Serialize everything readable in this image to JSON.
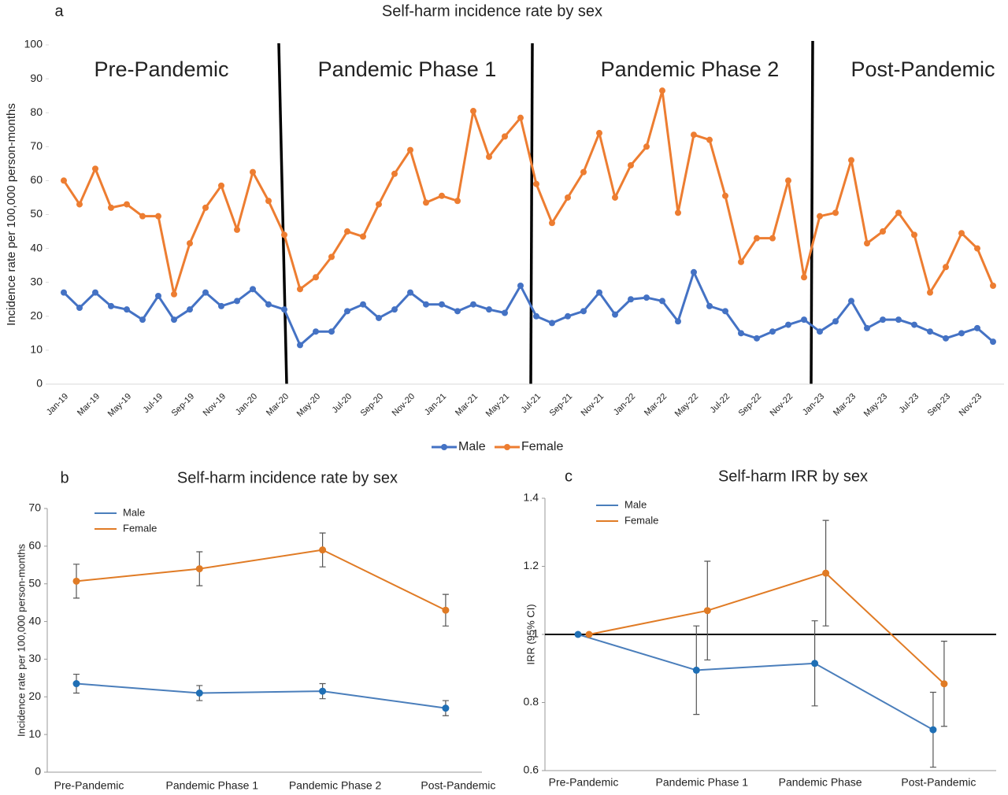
{
  "chart_data": [
    {
      "type": "line",
      "panel_label": "a",
      "title": "Self-harm incidence rate by sex",
      "y_label": "Incidence rate per 100,000 person-months",
      "annotations": [
        "Pre-Pandemic",
        "Pandemic Phase 1",
        "Pandemic Phase 2",
        "Post-Pandemic"
      ],
      "categories": [
        "Jan-19",
        null,
        "Mar-19",
        null,
        "May-19",
        null,
        "Jul-19",
        null,
        "Sep-19",
        null,
        "Nov-19",
        null,
        "Jan-20",
        null,
        "Mar-20",
        null,
        "May-20",
        null,
        "Jul-20",
        null,
        "Sep-20",
        null,
        "Nov-20",
        null,
        "Jan-21",
        null,
        "Mar-21",
        null,
        "May-21",
        null,
        "Jul-21",
        null,
        "Sep-21",
        null,
        "Nov-21",
        null,
        "Jan-22",
        null,
        "Mar-22",
        null,
        "May-22",
        null,
        "Jul-22",
        null,
        "Sep-22",
        null,
        "Nov-22",
        null,
        "Jan-23",
        null,
        "Mar-23",
        null,
        "May-23",
        null,
        "Jul-23",
        null,
        "Sep-23",
        null,
        "Nov-23",
        null
      ],
      "series": [
        {
          "name": "Male",
          "color": "#4472c4",
          "values": [
            27,
            22.5,
            27,
            23,
            22,
            19,
            26,
            19,
            22,
            27,
            23,
            24.5,
            28,
            23.5,
            22,
            11.5,
            15.5,
            15.5,
            21.5,
            23.5,
            19.5,
            22,
            27,
            23.5,
            23.5,
            21.5,
            23.5,
            22,
            21,
            29,
            20,
            18,
            20,
            21.5,
            27,
            20.5,
            25,
            25.5,
            24.5,
            18.5,
            33,
            23,
            21.5,
            15,
            13.5,
            15.5,
            17.5,
            19,
            15.5,
            18.5,
            24.5,
            16.5,
            19,
            19,
            17.5,
            15.5,
            13.5,
            15,
            16.5,
            12.5
          ]
        },
        {
          "name": "Female",
          "color": "#ed7d31",
          "values": [
            60,
            53,
            63.5,
            52,
            53,
            49.5,
            49.5,
            26.5,
            41.5,
            52,
            58.5,
            45.5,
            62.5,
            54,
            44,
            28,
            31.5,
            37.5,
            45,
            43.5,
            53,
            62,
            69,
            53.5,
            55.5,
            54,
            80.5,
            67,
            73,
            78.5,
            59,
            47.5,
            55,
            62.5,
            74,
            55,
            64.5,
            70,
            86.5,
            50.5,
            73.5,
            72,
            55.5,
            36,
            43,
            43,
            60,
            31.5,
            49.5,
            50.5,
            66,
            41.5,
            45,
            50.5,
            44,
            27,
            34.5,
            44.5,
            40,
            29
          ]
        }
      ],
      "ylim": [
        0,
        100
      ],
      "yticks": [
        0,
        10,
        20,
        30,
        40,
        50,
        60,
        70,
        80,
        90,
        100
      ],
      "grid": false,
      "legend": "bottom"
    },
    {
      "type": "line",
      "panel_label": "b",
      "title": "Self-harm incidence rate by sex",
      "y_label": "Incidence rate per 100,000 person-months",
      "categories": [
        "Pre-Pandemic",
        "Pandemic Phase 1",
        "Pandemic Phase 2",
        "Post-Pandemic"
      ],
      "series": [
        {
          "name": "Male",
          "color": "#4a7ebb",
          "values": [
            23.5,
            21,
            21.5,
            17
          ],
          "errors": [
            2.5,
            2,
            2,
            2
          ]
        },
        {
          "name": "Female",
          "color": "#e07b25",
          "values": [
            50.7,
            54,
            59,
            43
          ],
          "errors": [
            4.5,
            4.5,
            4.5,
            4.2
          ]
        }
      ],
      "ylim": [
        0,
        70
      ],
      "yticks": [
        0,
        10,
        20,
        30,
        40,
        50,
        60,
        70
      ],
      "grid": false,
      "legend": "top-left"
    },
    {
      "type": "line",
      "panel_label": "c",
      "title": "Self-harm IRR by sex",
      "y_label": "IRR (95% CI)",
      "categories": [
        "Pre-Pandemic",
        "Pandemic Phase 1",
        "Pandemic Phase",
        "Post-Pandemic"
      ],
      "series": [
        {
          "name": "Male",
          "color": "#4a7ebb",
          "values": [
            1,
            0.895,
            0.915,
            0.72
          ],
          "errors": [
            0,
            0.13,
            0.125,
            0.11
          ]
        },
        {
          "name": "Female",
          "color": "#e07b25",
          "values": [
            1,
            1.07,
            1.18,
            0.855
          ],
          "errors": [
            0,
            0.145,
            0.155,
            0.125
          ]
        }
      ],
      "ylim": [
        0.6,
        1.4
      ],
      "yticks": [
        0.6,
        0.8,
        1,
        1.2,
        1.4
      ],
      "reference_line": 1,
      "grid": false,
      "legend": "top-left"
    }
  ]
}
